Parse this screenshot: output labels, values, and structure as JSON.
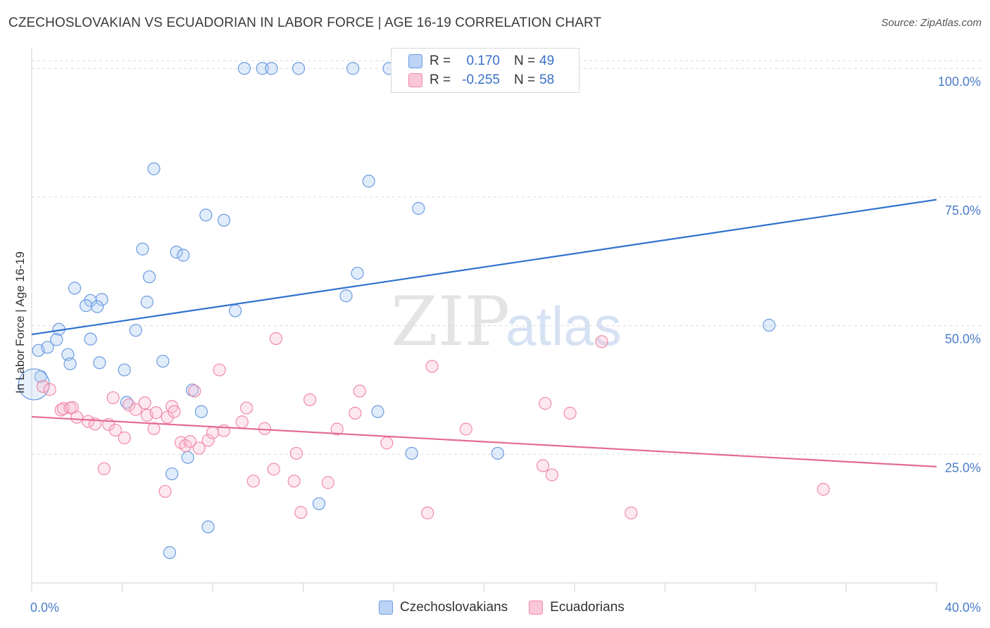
{
  "title": "CZECHOSLOVAKIAN VS ECUADORIAN IN LABOR FORCE | AGE 16-19 CORRELATION CHART",
  "source": "Source: ZipAtlas.com",
  "watermark": {
    "zip": "ZIP",
    "atlas": "atlas"
  },
  "legend_stats": [
    {
      "r_label": "R =",
      "r_value": "0.170",
      "n_label": "N =",
      "n_value": "49",
      "color": "#6b9be0"
    },
    {
      "r_label": "R =",
      "r_value": "-0.255",
      "n_label": "N =",
      "n_value": "58",
      "color": "#f08aaa"
    }
  ],
  "legend": [
    {
      "label": "Czechoslovakians",
      "color": "#6b9be0"
    },
    {
      "label": "Ecuadorians",
      "color": "#f08aaa"
    }
  ],
  "chart_data": {
    "type": "scatter",
    "title": "CZECHOSLOVAKIAN VS ECUADORIAN IN LABOR FORCE | AGE 16-19 CORRELATION CHART",
    "xlabel": "",
    "ylabel": "In Labor Force | Age 16-19",
    "xlim": [
      0,
      40
    ],
    "ylim": [
      0,
      104
    ],
    "x_tick_labels": [
      "0.0%",
      "40.0%"
    ],
    "y_ticks": [
      25,
      50,
      75,
      100
    ],
    "y_tick_labels": [
      "25.0%",
      "50.0%",
      "75.0%",
      "100.0%"
    ],
    "grid": true,
    "series": [
      {
        "name": "Czechoslovakians",
        "color": "#6b9be0",
        "trend": {
          "x": [
            0,
            40
          ],
          "y": [
            48.3,
            74.5
          ]
        },
        "x": [
          9.4,
          10.2,
          10.6,
          11.8,
          14.2,
          15.8,
          5.4,
          14.9,
          17.1,
          7.7,
          8.5,
          4.9,
          6.4,
          6.7,
          14.4,
          5.2,
          1.9,
          9.0,
          3.1,
          5.1,
          1.2,
          2.6,
          2.4,
          2.9,
          4.6,
          0.3,
          1.1,
          0.7,
          1.6,
          0.4,
          2.6,
          5.8,
          3.0,
          4.1,
          1.7,
          7.1,
          7.5,
          4.2,
          15.3,
          12.7,
          16.8,
          20.6,
          6.9,
          6.2,
          13.9,
          7.8,
          6.1,
          32.6,
          0.1
        ],
        "y": [
          100,
          100,
          100,
          100,
          100,
          100,
          80.5,
          78.1,
          72.8,
          71.5,
          70.5,
          64.9,
          64.3,
          63.7,
          60.2,
          59.5,
          57.3,
          52.9,
          55.1,
          54.6,
          49.3,
          54.9,
          53.9,
          53.7,
          49.1,
          45.2,
          47.3,
          45.8,
          44.4,
          40.1,
          47.4,
          43.1,
          42.8,
          41.4,
          42.6,
          37.5,
          33.3,
          35.1,
          33.3,
          15.4,
          25.2,
          25.2,
          24.4,
          21.2,
          55.8,
          10.9,
          5.9,
          50.1,
          38.6
        ]
      },
      {
        "name": "Ecuadorians",
        "color": "#f08aaa",
        "trend": {
          "x": [
            0,
            40
          ],
          "y": [
            32.3,
            22.6
          ]
        },
        "x": [
          0.5,
          0.8,
          1.3,
          1.4,
          1.7,
          1.8,
          2.0,
          2.5,
          2.8,
          3.2,
          3.4,
          3.6,
          3.7,
          4.1,
          4.3,
          4.6,
          5.0,
          5.1,
          5.4,
          5.5,
          5.9,
          6.0,
          6.2,
          6.3,
          6.6,
          6.8,
          7.0,
          7.2,
          7.4,
          7.8,
          8.0,
          8.3,
          8.5,
          9.3,
          9.5,
          9.8,
          10.3,
          10.7,
          10.8,
          11.6,
          11.7,
          11.9,
          12.3,
          13.1,
          13.5,
          14.3,
          14.5,
          15.7,
          17.5,
          17.7,
          19.2,
          22.6,
          22.7,
          23.0,
          23.8,
          25.2,
          26.5,
          35.0
        ],
        "y": [
          38.2,
          37.6,
          33.6,
          33.9,
          34.0,
          34.1,
          32.2,
          31.4,
          30.9,
          22.2,
          30.8,
          36.0,
          29.7,
          28.2,
          34.6,
          33.7,
          35.0,
          32.6,
          30.0,
          33.1,
          17.8,
          32.2,
          34.3,
          33.3,
          27.3,
          26.7,
          27.5,
          37.3,
          26.2,
          27.7,
          29.2,
          41.4,
          29.6,
          31.3,
          34.0,
          19.8,
          30.0,
          22.1,
          47.5,
          19.8,
          25.2,
          13.7,
          35.6,
          19.5,
          29.9,
          33.0,
          37.3,
          27.2,
          13.6,
          42.1,
          29.9,
          22.8,
          34.9,
          21.0,
          33.0,
          46.9,
          13.6,
          18.2
        ]
      }
    ]
  }
}
